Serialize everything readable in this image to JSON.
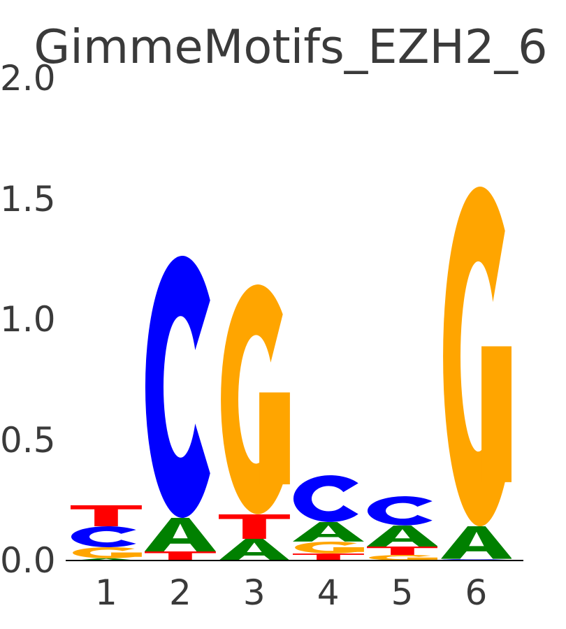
{
  "title": "GimmeMotifs_EZH2_6",
  "chart_data": {
    "type": "sequence_logo",
    "title": "GimmeMotifs_EZH2_6",
    "xlabel": "",
    "ylabel": "",
    "x_tick_labels": [
      "1",
      "2",
      "3",
      "4",
      "5",
      "6"
    ],
    "y_tick_labels": [
      "0.0",
      "0.5",
      "1.0",
      "1.5",
      "2.0"
    ],
    "y_tick_values": [
      0.0,
      0.5,
      1.0,
      1.5,
      2.0
    ],
    "ylim": [
      0.0,
      2.0
    ],
    "grid": false,
    "legend": "none",
    "letter_colors": {
      "A": "#008000",
      "C": "#0000FF",
      "G": "#FFA500",
      "T": "#FF0000"
    },
    "positions": [
      {
        "x": "1",
        "stack": [
          {
            "letter": "A",
            "bits": 0.01
          },
          {
            "letter": "G",
            "bits": 0.046
          },
          {
            "letter": "C",
            "bits": 0.087
          },
          {
            "letter": "T",
            "bits": 0.087
          }
        ]
      },
      {
        "x": "2",
        "stack": [
          {
            "letter": "T",
            "bits": 0.038
          },
          {
            "letter": "A",
            "bits": 0.139
          },
          {
            "letter": "C",
            "bits": 1.087
          }
        ]
      },
      {
        "x": "3",
        "stack": [
          {
            "letter": "A",
            "bits": 0.09
          },
          {
            "letter": "T",
            "bits": 0.102
          },
          {
            "letter": "G",
            "bits": 0.953
          }
        ]
      },
      {
        "x": "4",
        "stack": [
          {
            "letter": "T",
            "bits": 0.029
          },
          {
            "letter": "G",
            "bits": 0.049
          },
          {
            "letter": "A",
            "bits": 0.081
          },
          {
            "letter": "C",
            "bits": 0.194
          }
        ]
      },
      {
        "x": "5",
        "stack": [
          {
            "letter": "G",
            "bits": 0.023
          },
          {
            "letter": "T",
            "bits": 0.035
          },
          {
            "letter": "A",
            "bits": 0.087
          },
          {
            "letter": "C",
            "bits": 0.121
          }
        ]
      },
      {
        "x": "6",
        "stack": [
          {
            "letter": "C",
            "bits": 0.006
          },
          {
            "letter": "A",
            "bits": 0.135
          },
          {
            "letter": "G",
            "bits": 1.409
          }
        ]
      }
    ]
  },
  "style_colors": {
    "text": "#3a3a3a",
    "axis": "#000000",
    "background": "#ffffff"
  }
}
